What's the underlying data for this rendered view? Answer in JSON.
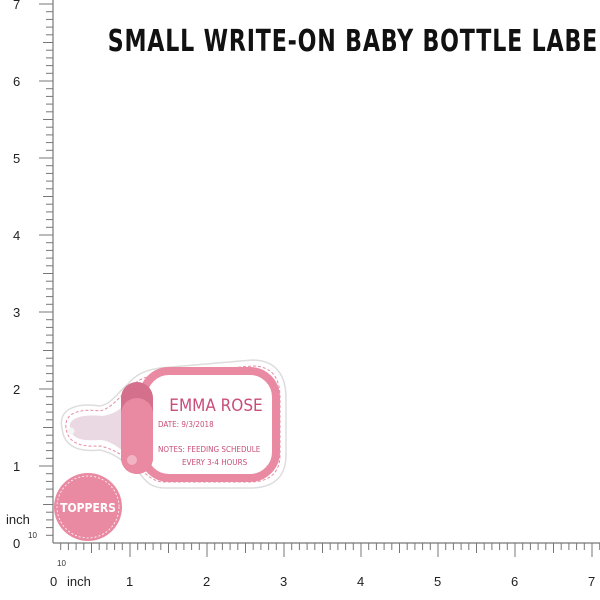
{
  "title": "SMALL WRITE-ON BABY BOTTLE LABELS",
  "ruler": {
    "unit_label": "inch",
    "sub_label": "10",
    "origin_label": "0",
    "x_labels": [
      "1",
      "2",
      "3",
      "4",
      "5",
      "6",
      "7"
    ],
    "y_labels": [
      "1",
      "2",
      "3",
      "4",
      "5",
      "6",
      "7"
    ],
    "subdivisions": 10
  },
  "bottle_label": {
    "name": "EMMA ROSE",
    "date": "DATE: 9/3/2018",
    "notes_1": "NOTES: FEEDING SCHEDULE",
    "notes_2": "EVERY 3-4 HOURS"
  },
  "topper": {
    "text": "TOPPERS"
  },
  "colors": {
    "pink": "#e98aa2",
    "dark_pink": "#d46f8c",
    "light_pink": "#ead8e2",
    "text_pink": "#c94d79"
  }
}
